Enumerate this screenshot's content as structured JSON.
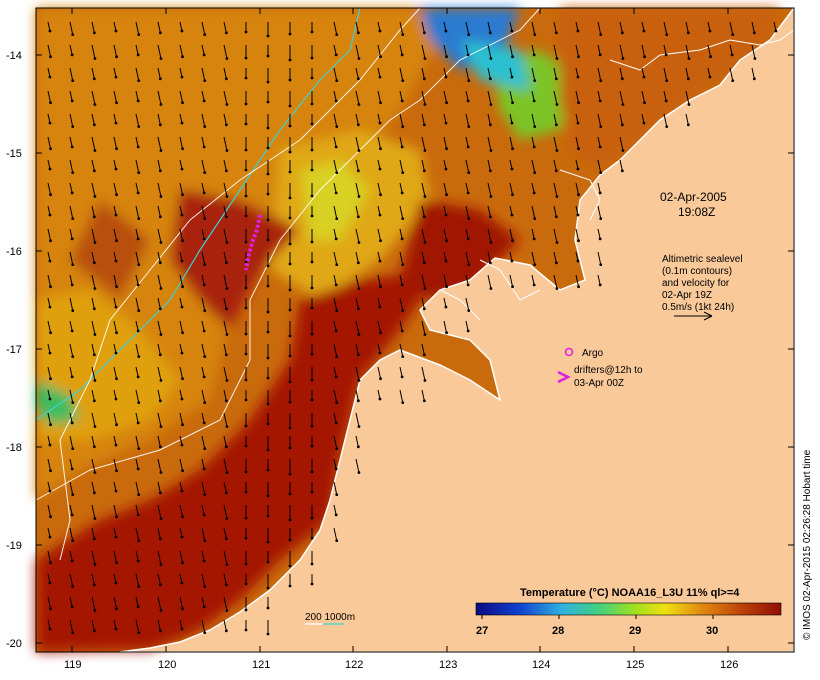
{
  "map": {
    "lon_ticks": [
      "119",
      "120",
      "121",
      "122",
      "123",
      "124",
      "125",
      "126"
    ],
    "lat_ticks": [
      "-14",
      "-15",
      "-16",
      "-17",
      "-18",
      "-19",
      "-20"
    ],
    "date_line1": "02-Apr-2005",
    "date_line2": "19:08Z",
    "altimetry_lines": [
      "Altimetric sealevel",
      "(0.1m contours)",
      "and velocity for",
      "02-Apr 19Z",
      "0.5m/s (1kt 24h)"
    ],
    "argo_label": "Argo",
    "drifters_lines": [
      "drifters@12h to",
      "03-Apr 00Z"
    ],
    "bathy_label": "200  1000m",
    "colorbar_title": "Temperature (°C) NOAA16_L3U 11% ql>=4",
    "colorbar_ticks": [
      "27",
      "28",
      "29",
      "30"
    ],
    "credit": "© IMOS 02-Apr-2015 02:26:28 Hobart time",
    "colors": {
      "land": "#f9c99a",
      "warm": "#a01204",
      "orange": "#d8780e",
      "yellow": "#e6c010",
      "green": "#58c020",
      "cyan": "#3fc8d8",
      "blue": "#1040c0",
      "argo": "#e020e0"
    }
  }
}
